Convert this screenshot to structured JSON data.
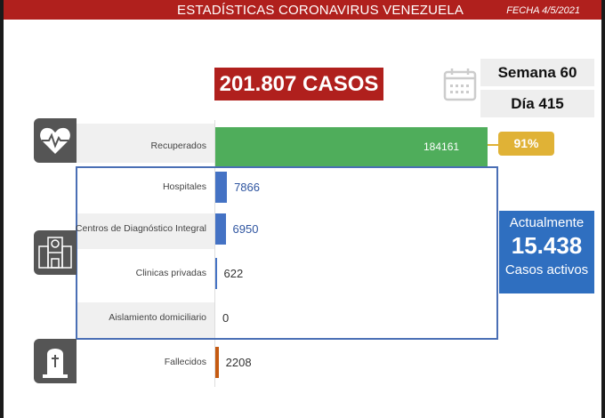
{
  "header": {
    "title": "ESTADÍSTICAS CORONAVIRUS VENEZUELA",
    "date": "FECHA 4/5/2021"
  },
  "total_cases": "201.807 CASOS",
  "week": "Semana 60",
  "day": "Día 415",
  "recovered_pct": "91%",
  "active": {
    "label_top": "Actualmente",
    "value": "15.438",
    "label_bottom": "Casos activos"
  },
  "icons": [
    "calendar-icon",
    "heart-pulse-icon",
    "hospital-icon",
    "tombstone-icon"
  ],
  "colors": {
    "header": "#b0201d",
    "recovered": "#4fad5b",
    "hospital": "#4472c4",
    "deaths": "#c55a11",
    "percent": "#e0b236",
    "active": "#2f6fc0"
  },
  "chart_data": {
    "type": "bar",
    "orientation": "horizontal",
    "categories": [
      "Recuperados",
      "Hospitales",
      "Centros de Diagnóstico Integral",
      "Clinicas privadas",
      "Aislamiento domiciliario",
      "Fallecidos"
    ],
    "values": [
      184161,
      7866,
      6950,
      622,
      0,
      2208
    ],
    "value_labels": [
      "184161",
      "7866",
      "6950",
      "622",
      "0",
      "2208"
    ],
    "bar_colors": [
      "#4fad5b",
      "#4472c4",
      "#4472c4",
      "#4472c4",
      "#4472c4",
      "#c55a11"
    ],
    "xlim": [
      0,
      184161
    ]
  }
}
